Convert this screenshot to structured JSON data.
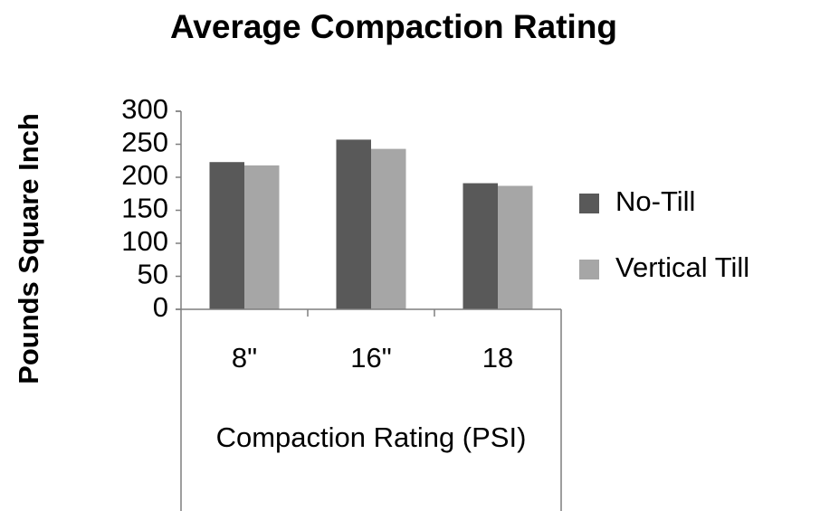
{
  "chart_data": {
    "type": "bar",
    "title": "Average Compaction Rating",
    "y_label": "Pounds Square Inch",
    "x_label": "Compaction Rating (PSI)",
    "categories": [
      "8\"",
      "16\"",
      "18"
    ],
    "series": [
      {
        "name": "No-Till",
        "color": "#595959",
        "values": [
          223,
          257,
          191
        ]
      },
      {
        "name": "Vertical Till",
        "color": "#a6a6a6",
        "values": [
          218,
          243,
          187
        ]
      }
    ],
    "ylim": [
      0,
      300
    ],
    "yticks": [
      0,
      50,
      100,
      150,
      200,
      250,
      300
    ],
    "grid": false,
    "legend": "right"
  }
}
